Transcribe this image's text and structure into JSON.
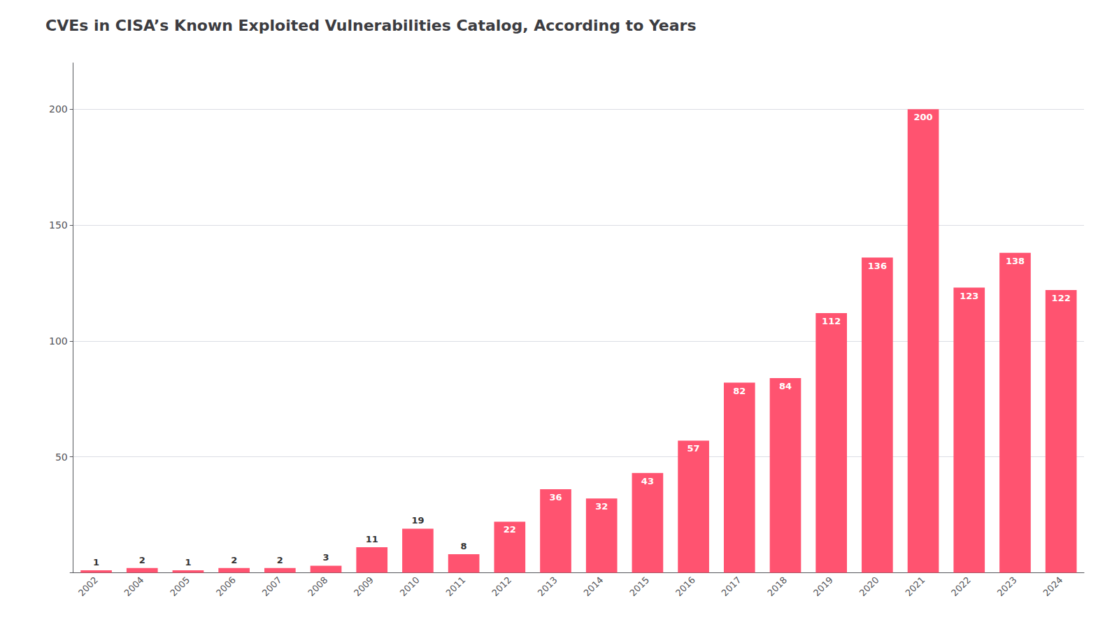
{
  "chart_data": {
    "type": "bar",
    "title": "CVEs in CISA’s Known Exploited Vulnerabilities Catalog, According to Years",
    "categories": [
      "2002",
      "2004",
      "2005",
      "2006",
      "2007",
      "2008",
      "2009",
      "2010",
      "2011",
      "2012",
      "2013",
      "2014",
      "2015",
      "2016",
      "2017",
      "2018",
      "2019",
      "2020",
      "2021",
      "2022",
      "2023",
      "2024"
    ],
    "values": [
      1,
      2,
      1,
      2,
      2,
      3,
      11,
      19,
      8,
      22,
      36,
      32,
      43,
      57,
      82,
      84,
      112,
      136,
      200,
      123,
      138,
      122
    ],
    "color": "#FF5370",
    "ylim": [
      0,
      220
    ],
    "yticks": [
      {
        "value": 0,
        "label": null
      },
      50,
      100,
      150,
      200
    ],
    "grid": true,
    "data_labels": true
  }
}
